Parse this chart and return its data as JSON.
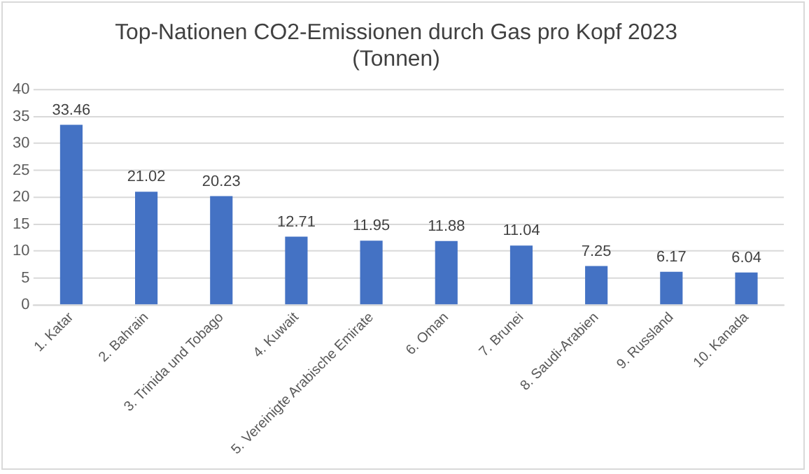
{
  "chart_data": {
    "type": "bar",
    "title": "Top-Nationen CO2-Emissionen durch Gas pro Kopf 2023 (Tonnen)",
    "categories": [
      "1. Katar",
      "2. Bahrain",
      "3. Trinida und Tobago",
      "4. Kuwait",
      "5. Vereinigte Arabische Emirate",
      "6. Oman",
      "7. Brunei",
      "8. Saudi-Arabien",
      "9. Russland",
      "10. Kanada"
    ],
    "values": [
      33.46,
      21.02,
      20.23,
      12.71,
      11.95,
      11.88,
      11.04,
      7.25,
      6.17,
      6.04
    ],
    "color": "#4472c4",
    "ylim": [
      0,
      40
    ],
    "yticks": [
      0,
      5,
      10,
      15,
      20,
      25,
      30,
      35,
      40
    ],
    "grid": "y",
    "data_labels": true
  }
}
